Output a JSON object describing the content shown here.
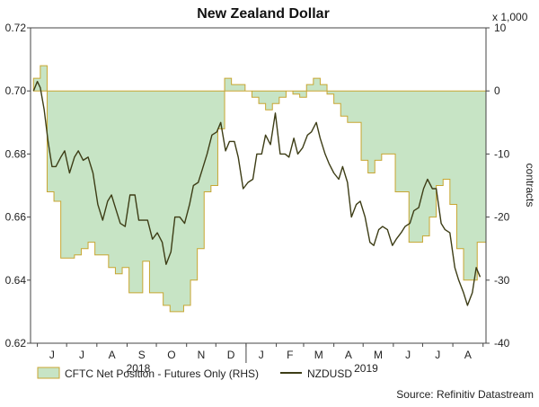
{
  "chart_data": {
    "type": "line",
    "title": "New Zealand Dollar",
    "source": "Source: Refinitiv Datastream",
    "x_months": [
      "J",
      "J",
      "A",
      "S",
      "O",
      "N",
      "D",
      "J",
      "F",
      "M",
      "A",
      "M",
      "J",
      "J",
      "A"
    ],
    "x_years": [
      "2018",
      "2019"
    ],
    "y_left": {
      "ticks": [
        "0.62",
        "0.64",
        "0.66",
        "0.68",
        "0.70",
        "0.72"
      ],
      "range": [
        0.62,
        0.72
      ]
    },
    "y_right": {
      "ticks": [
        "-40",
        "-30",
        "-20",
        "-10",
        "0",
        "10"
      ],
      "range": [
        -40,
        10
      ],
      "label": "contracts",
      "multiplier": "x 1,000"
    },
    "grid": false,
    "legend_position": "bottom-left",
    "colors": {
      "line": "#3d3d16",
      "area_fill": "#c7e4c5",
      "area_edge": "#c8a632"
    },
    "series": [
      {
        "name": "CFTC Net Position - Futures Only (RHS)",
        "kind": "step-area",
        "axis": "right",
        "x": [
          "2018-05-28",
          "2018-06-04",
          "2018-06-11",
          "2018-06-18",
          "2018-06-25",
          "2018-07-02",
          "2018-07-09",
          "2018-07-16",
          "2018-07-23",
          "2018-07-30",
          "2018-08-06",
          "2018-08-13",
          "2018-08-20",
          "2018-08-27",
          "2018-09-03",
          "2018-09-10",
          "2018-09-17",
          "2018-09-24",
          "2018-10-01",
          "2018-10-08",
          "2018-10-15",
          "2018-10-22",
          "2018-10-29",
          "2018-11-05",
          "2018-11-12",
          "2018-11-19",
          "2018-11-26",
          "2018-12-03",
          "2018-12-10",
          "2018-12-17",
          "2018-12-24",
          "2018-12-31",
          "2019-01-07",
          "2019-01-14",
          "2019-01-21",
          "2019-01-28",
          "2019-02-04",
          "2019-02-11",
          "2019-02-18",
          "2019-02-25",
          "2019-03-04",
          "2019-03-11",
          "2019-03-18",
          "2019-03-25",
          "2019-04-01",
          "2019-04-08",
          "2019-04-15",
          "2019-04-22",
          "2019-04-29",
          "2019-05-06",
          "2019-05-13",
          "2019-05-20",
          "2019-05-27",
          "2019-06-03",
          "2019-06-10",
          "2019-06-17",
          "2019-06-24",
          "2019-07-01",
          "2019-07-08",
          "2019-07-15",
          "2019-07-22",
          "2019-07-29",
          "2019-08-05",
          "2019-08-12",
          "2019-08-19",
          "2019-08-26"
        ],
        "values": [
          2,
          4,
          -16,
          -17.5,
          -26.5,
          -26.5,
          -26,
          -25,
          -24,
          -26,
          -26,
          -28,
          -29,
          -28,
          -32,
          -32,
          -27,
          -32,
          -32,
          -34,
          -35,
          -35,
          -34,
          -30,
          -25,
          -16,
          -15,
          -6,
          2,
          1,
          1,
          0,
          -1,
          -2,
          -3,
          -2,
          -1,
          0,
          -0.5,
          -1,
          1,
          2,
          1,
          -0.5,
          -2,
          -4,
          -5,
          -5,
          -11,
          -13,
          -11,
          -10,
          -10,
          -16,
          -16,
          -24,
          -24,
          -23,
          -20,
          -15,
          -14,
          -18,
          -25,
          -30,
          -30,
          -24
        ]
      },
      {
        "name": "NZDUSD",
        "kind": "line",
        "axis": "left",
        "x": [
          "2018-05-28",
          "2018-06-01",
          "2018-06-04",
          "2018-06-08",
          "2018-06-12",
          "2018-06-16",
          "2018-06-20",
          "2018-06-25",
          "2018-06-29",
          "2018-07-04",
          "2018-07-09",
          "2018-07-13",
          "2018-07-18",
          "2018-07-23",
          "2018-07-28",
          "2018-08-02",
          "2018-08-07",
          "2018-08-12",
          "2018-08-16",
          "2018-08-21",
          "2018-08-25",
          "2018-08-30",
          "2018-09-04",
          "2018-09-09",
          "2018-09-13",
          "2018-09-18",
          "2018-09-22",
          "2018-09-27",
          "2018-10-02",
          "2018-10-07",
          "2018-10-11",
          "2018-10-16",
          "2018-10-20",
          "2018-10-25",
          "2018-10-30",
          "2018-11-04",
          "2018-11-08",
          "2018-11-13",
          "2018-11-17",
          "2018-11-22",
          "2018-11-27",
          "2018-12-02",
          "2018-12-06",
          "2018-12-11",
          "2018-12-15",
          "2018-12-20",
          "2018-12-24",
          "2018-12-29",
          "2019-01-03",
          "2019-01-08",
          "2019-01-12",
          "2019-01-17",
          "2019-01-21",
          "2019-01-26",
          "2019-01-31",
          "2019-02-05",
          "2019-02-10",
          "2019-02-14",
          "2019-02-19",
          "2019-02-23",
          "2019-02-28",
          "2019-03-05",
          "2019-03-09",
          "2019-03-14",
          "2019-03-18",
          "2019-03-23",
          "2019-03-27",
          "2019-04-01",
          "2019-04-06",
          "2019-04-10",
          "2019-04-15",
          "2019-04-19",
          "2019-04-24",
          "2019-04-28",
          "2019-05-03",
          "2019-05-08",
          "2019-05-12",
          "2019-05-17",
          "2019-05-21",
          "2019-05-26",
          "2019-05-31",
          "2019-06-04",
          "2019-06-09",
          "2019-06-13",
          "2019-06-18",
          "2019-06-22",
          "2019-06-27",
          "2019-07-02",
          "2019-07-06",
          "2019-07-11",
          "2019-07-15",
          "2019-07-20",
          "2019-07-24",
          "2019-07-29",
          "2019-08-03",
          "2019-08-07",
          "2019-08-12",
          "2019-08-16",
          "2019-08-21",
          "2019-08-25",
          "2019-08-29"
        ],
        "values": [
          0.7,
          0.703,
          0.701,
          0.694,
          0.684,
          0.676,
          0.676,
          0.679,
          0.681,
          0.674,
          0.679,
          0.681,
          0.678,
          0.679,
          0.674,
          0.664,
          0.659,
          0.665,
          0.667,
          0.662,
          0.658,
          0.657,
          0.667,
          0.667,
          0.659,
          0.659,
          0.659,
          0.653,
          0.655,
          0.652,
          0.645,
          0.649,
          0.66,
          0.66,
          0.658,
          0.664,
          0.67,
          0.671,
          0.675,
          0.68,
          0.686,
          0.687,
          0.69,
          0.681,
          0.684,
          0.684,
          0.679,
          0.669,
          0.671,
          0.672,
          0.68,
          0.68,
          0.686,
          0.683,
          0.693,
          0.68,
          0.68,
          0.679,
          0.685,
          0.68,
          0.682,
          0.686,
          0.687,
          0.69,
          0.685,
          0.68,
          0.677,
          0.674,
          0.672,
          0.676,
          0.671,
          0.66,
          0.664,
          0.665,
          0.66,
          0.652,
          0.651,
          0.656,
          0.657,
          0.656,
          0.651,
          0.653,
          0.655,
          0.657,
          0.658,
          0.662,
          0.663,
          0.669,
          0.672,
          0.669,
          0.669,
          0.658,
          0.656,
          0.655,
          0.644,
          0.64,
          0.636,
          0.632,
          0.636,
          0.644,
          0.641
        ]
      }
    ]
  }
}
